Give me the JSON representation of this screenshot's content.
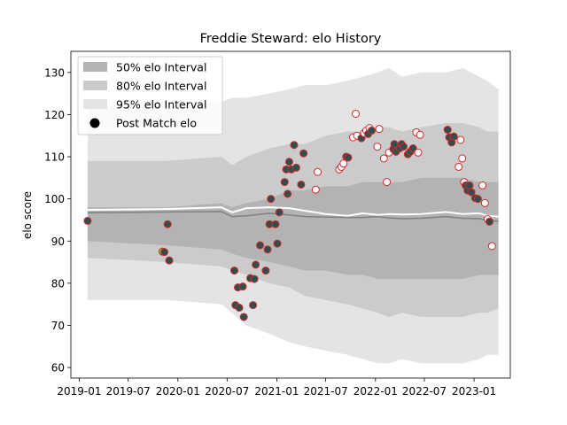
{
  "chart_data": {
    "type": "line",
    "title": "Freddie Steward: elo History",
    "xlabel": "",
    "ylabel": "elo score",
    "x_ticks": [
      "2019-01",
      "2019-07",
      "2020-01",
      "2020-07",
      "2021-01",
      "2021-07",
      "2022-01",
      "2022-07",
      "2023-01"
    ],
    "y_ticks": [
      60,
      70,
      80,
      90,
      100,
      110,
      120,
      130
    ],
    "xlim": [
      "2018-12-01",
      "2023-05-15"
    ],
    "ylim": [
      57.5,
      135
    ],
    "grid": false,
    "legend_position": "top-left",
    "legend": [
      {
        "label": "50% elo Interval",
        "color": "#b3b3b3"
      },
      {
        "label": "80% elo Interval",
        "color": "#c8c8c8"
      },
      {
        "label": "95% elo Interval",
        "color": "#e3e3e3"
      },
      {
        "label": "Post Match elo",
        "color": "#000000"
      }
    ],
    "colors": {
      "band50": "#b3b3b3",
      "band80": "#cbcbcb",
      "band95": "#e4e4e4",
      "median_line": "#808080",
      "mean_line": "#ffffff",
      "point_edge": "#d62728",
      "point_fill_dark": "#2f4f4f",
      "point_fill_light": "#ffffff",
      "first_point_fill": "#bcbd22"
    },
    "bands": {
      "x": [
        "2019-02-01",
        "2019-11-20",
        "2020-06-10",
        "2020-07-20",
        "2020-09-10",
        "2020-12-05",
        "2021-02-15",
        "2021-04-15",
        "2021-07-01",
        "2021-09-20",
        "2021-11-15",
        "2022-01-10",
        "2022-02-20",
        "2022-04-10",
        "2022-06-20",
        "2022-09-20",
        "2022-11-20",
        "2023-01-20",
        "2023-02-20",
        "2023-04-01"
      ],
      "p95_upper": [
        122,
        122,
        123,
        124,
        124,
        125,
        126,
        127,
        127,
        128,
        129,
        130,
        131,
        129,
        130,
        130,
        131,
        129,
        128,
        126
      ],
      "p95_lower": [
        76,
        76,
        75,
        73,
        70,
        68,
        66,
        65,
        64,
        63,
        62,
        61,
        61,
        62,
        61,
        61,
        61,
        62,
        63,
        63
      ],
      "p80_upper": [
        109,
        109,
        110,
        108,
        110,
        112,
        113,
        113,
        115,
        116,
        116,
        117,
        117,
        116,
        117,
        118,
        118,
        117,
        116,
        116
      ],
      "p80_lower": [
        86,
        85,
        84,
        83,
        82,
        80,
        79,
        77,
        76,
        75,
        74,
        73,
        72,
        73,
        72,
        72,
        72,
        73,
        73,
        74
      ],
      "p50_upper": [
        98,
        98,
        99,
        98,
        99,
        100,
        102,
        102,
        103,
        103,
        104,
        104,
        104,
        104,
        105,
        105,
        105,
        104,
        104,
        104
      ],
      "p50_lower": [
        90,
        89,
        88,
        87,
        86,
        85,
        84,
        83,
        83,
        82,
        82,
        81,
        81,
        81,
        81,
        81,
        81,
        82,
        82,
        82
      ],
      "median": [
        96.7,
        96.9,
        97.0,
        95.8,
        96.0,
        96.6,
        96.2,
        95.8,
        95.7,
        95.6,
        95.6,
        95.8,
        95.5,
        95.3,
        95.4,
        95.8,
        95.4,
        95.3,
        94.9,
        94.7
      ],
      "mean": [
        97.4,
        97.6,
        98.0,
        96.8,
        97.8,
        98.0,
        97.8,
        97.2,
        96.4,
        96.0,
        96.6,
        96.2,
        96.4,
        96.3,
        96.4,
        96.9,
        96.4,
        96.6,
        96.0,
        95.8
      ]
    },
    "series": [
      {
        "name": "Post Match elo",
        "points": [
          {
            "x": "2019-02-01",
            "y": 94.8,
            "style": "dark"
          },
          {
            "x": "2019-11-05",
            "y": 87.5,
            "style": "first"
          },
          {
            "x": "2019-11-12",
            "y": 87.4,
            "style": "dark"
          },
          {
            "x": "2019-11-24",
            "y": 94.0,
            "style": "dark"
          },
          {
            "x": "2019-11-30",
            "y": 85.4,
            "style": "dark"
          },
          {
            "x": "2020-07-28",
            "y": 83.0,
            "style": "dark"
          },
          {
            "x": "2020-08-01",
            "y": 74.8,
            "style": "dark"
          },
          {
            "x": "2020-08-10",
            "y": 79.0,
            "style": "dark"
          },
          {
            "x": "2020-08-15",
            "y": 74.2,
            "style": "dark"
          },
          {
            "x": "2020-08-28",
            "y": 79.2,
            "style": "dark"
          },
          {
            "x": "2020-09-01",
            "y": 72.0,
            "style": "dark"
          },
          {
            "x": "2020-09-25",
            "y": 81.2,
            "style": "dark"
          },
          {
            "x": "2020-10-05",
            "y": 74.8,
            "style": "dark"
          },
          {
            "x": "2020-10-10",
            "y": 81.0,
            "style": "dark"
          },
          {
            "x": "2020-10-15",
            "y": 84.4,
            "style": "dark"
          },
          {
            "x": "2020-10-31",
            "y": 89.0,
            "style": "dark"
          },
          {
            "x": "2020-11-21",
            "y": 83.0,
            "style": "dark"
          },
          {
            "x": "2020-11-28",
            "y": 88.0,
            "style": "dark"
          },
          {
            "x": "2020-12-05",
            "y": 94.0,
            "style": "dark"
          },
          {
            "x": "2020-12-10",
            "y": 100.0,
            "style": "dark"
          },
          {
            "x": "2020-12-27",
            "y": 94.0,
            "style": "dark"
          },
          {
            "x": "2021-01-03",
            "y": 89.4,
            "style": "dark"
          },
          {
            "x": "2021-01-10",
            "y": 96.8,
            "style": "dark"
          },
          {
            "x": "2021-01-30",
            "y": 104.0,
            "style": "dark"
          },
          {
            "x": "2021-02-05",
            "y": 107.0,
            "style": "dark"
          },
          {
            "x": "2021-02-10",
            "y": 101.2,
            "style": "dark"
          },
          {
            "x": "2021-02-16",
            "y": 108.8,
            "style": "dark"
          },
          {
            "x": "2021-02-24",
            "y": 107.0,
            "style": "dark"
          },
          {
            "x": "2021-03-06",
            "y": 112.8,
            "style": "dark"
          },
          {
            "x": "2021-03-14",
            "y": 107.4,
            "style": "dark"
          },
          {
            "x": "2021-04-01",
            "y": 103.4,
            "style": "dark"
          },
          {
            "x": "2021-04-10",
            "y": 110.8,
            "style": "dark"
          },
          {
            "x": "2021-05-25",
            "y": 102.2,
            "style": "light"
          },
          {
            "x": "2021-06-01",
            "y": 106.4,
            "style": "light"
          },
          {
            "x": "2021-08-20",
            "y": 107.0,
            "style": "light"
          },
          {
            "x": "2021-08-28",
            "y": 107.6,
            "style": "light"
          },
          {
            "x": "2021-09-05",
            "y": 108.4,
            "style": "light"
          },
          {
            "x": "2021-09-15",
            "y": 110.0,
            "style": "dark"
          },
          {
            "x": "2021-09-22",
            "y": 109.8,
            "style": "dark"
          },
          {
            "x": "2021-10-10",
            "y": 114.6,
            "style": "light"
          },
          {
            "x": "2021-10-20",
            "y": 120.2,
            "style": "light"
          },
          {
            "x": "2021-10-25",
            "y": 115.0,
            "style": "light"
          },
          {
            "x": "2021-11-10",
            "y": 114.4,
            "style": "dark"
          },
          {
            "x": "2021-11-20",
            "y": 115.6,
            "style": "light"
          },
          {
            "x": "2021-11-28",
            "y": 116.2,
            "style": "light"
          },
          {
            "x": "2021-12-05",
            "y": 115.4,
            "style": "dark"
          },
          {
            "x": "2021-12-10",
            "y": 116.8,
            "style": "light"
          },
          {
            "x": "2021-12-18",
            "y": 116.2,
            "style": "dark"
          },
          {
            "x": "2022-01-08",
            "y": 112.4,
            "style": "light"
          },
          {
            "x": "2022-01-15",
            "y": 116.6,
            "style": "light"
          },
          {
            "x": "2022-02-01",
            "y": 109.6,
            "style": "light"
          },
          {
            "x": "2022-02-12",
            "y": 104.0,
            "style": "light"
          },
          {
            "x": "2022-02-20",
            "y": 111.0,
            "style": "light"
          },
          {
            "x": "2022-03-08",
            "y": 111.8,
            "style": "dark"
          },
          {
            "x": "2022-03-12",
            "y": 113.0,
            "style": "dark"
          },
          {
            "x": "2022-03-18",
            "y": 111.2,
            "style": "dark"
          },
          {
            "x": "2022-04-01",
            "y": 112.0,
            "style": "dark"
          },
          {
            "x": "2022-04-08",
            "y": 113.0,
            "style": "dark"
          },
          {
            "x": "2022-04-15",
            "y": 112.4,
            "style": "dark"
          },
          {
            "x": "2022-05-01",
            "y": 110.6,
            "style": "dark"
          },
          {
            "x": "2022-05-10",
            "y": 111.2,
            "style": "dark"
          },
          {
            "x": "2022-05-20",
            "y": 112.0,
            "style": "dark"
          },
          {
            "x": "2022-06-01",
            "y": 115.8,
            "style": "light"
          },
          {
            "x": "2022-06-08",
            "y": 111.0,
            "style": "light"
          },
          {
            "x": "2022-06-15",
            "y": 115.2,
            "style": "light"
          },
          {
            "x": "2022-09-25",
            "y": 116.4,
            "style": "dark"
          },
          {
            "x": "2022-10-01",
            "y": 114.6,
            "style": "dark"
          },
          {
            "x": "2022-10-10",
            "y": 113.4,
            "style": "dark"
          },
          {
            "x": "2022-10-18",
            "y": 114.8,
            "style": "dark"
          },
          {
            "x": "2022-11-05",
            "y": 107.6,
            "style": "light"
          },
          {
            "x": "2022-11-12",
            "y": 114.0,
            "style": "light"
          },
          {
            "x": "2022-11-18",
            "y": 109.6,
            "style": "light"
          },
          {
            "x": "2022-11-25",
            "y": 104.0,
            "style": "light"
          },
          {
            "x": "2022-12-01",
            "y": 103.2,
            "style": "dark"
          },
          {
            "x": "2022-12-08",
            "y": 102.0,
            "style": "dark"
          },
          {
            "x": "2022-12-15",
            "y": 103.2,
            "style": "dark"
          },
          {
            "x": "2022-12-22",
            "y": 101.6,
            "style": "dark"
          },
          {
            "x": "2023-01-05",
            "y": 100.2,
            "style": "dark"
          },
          {
            "x": "2023-01-15",
            "y": 100.0,
            "style": "dark"
          },
          {
            "x": "2023-02-01",
            "y": 103.2,
            "style": "light"
          },
          {
            "x": "2023-02-10",
            "y": 99.0,
            "style": "light"
          },
          {
            "x": "2023-02-20",
            "y": 95.2,
            "style": "light"
          },
          {
            "x": "2023-02-27",
            "y": 94.6,
            "style": "dark"
          },
          {
            "x": "2023-03-08",
            "y": 88.8,
            "style": "light"
          }
        ]
      }
    ]
  }
}
